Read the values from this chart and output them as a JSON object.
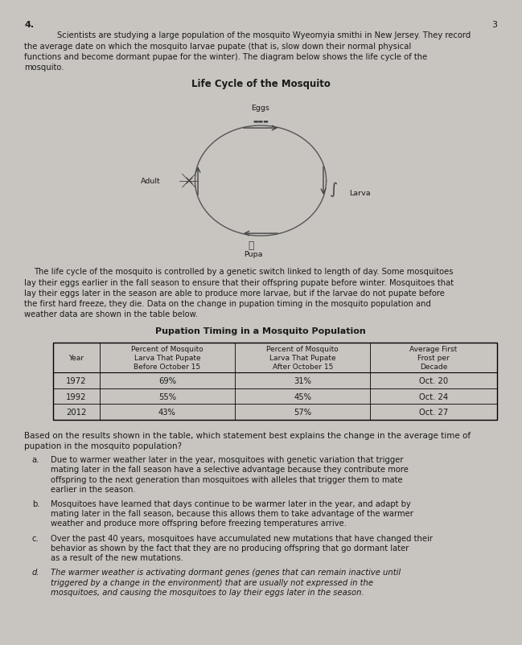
{
  "bg_color": "#c8c4c0",
  "page_bg": "#eceae6",
  "question_number": "4.",
  "page_number": "3",
  "intro_line1": "Scientists are studying a large population of the mosquito Wyeomyia smithi in New Jersey. They record",
  "intro_line2": "the average date on which the mosquito larvae pupate (that is, slow down their normal physical",
  "intro_line3": "functions and become dormant pupae for the winter). The diagram below shows the life cycle of the",
  "intro_line4": "mosquito.",
  "diagram_title": "Life Cycle of the Mosquito",
  "para_lines": [
    "The life cycle of the mosquito is controlled by a genetic switch linked to length of day. Some mosquitoes",
    "lay their eggs earlier in the fall season to ensure that their offspring pupate before winter. Mosquitoes that",
    "lay their eggs later in the season are able to produce more larvae, but if the larvae do not pupate before",
    "the first hard freeze, they die. Data on the change in pupation timing in the mosquito population and",
    "weather data are shown in the table below."
  ],
  "table_title": "Pupation Timing in a Mosquito Population",
  "col_headers": [
    "Year",
    "Percent of Mosquito\nLarva That Pupate\nBefore October 15",
    "Percent of Mosquito\nLarva That Pupate\nAfter October 15",
    "Average First\nFrost per\nDecade"
  ],
  "rows": [
    [
      "1972",
      "69%",
      "31%",
      "Oct. 20"
    ],
    [
      "1992",
      "55%",
      "45%",
      "Oct. 24"
    ],
    [
      "2012",
      "43%",
      "57%",
      "Oct. 27"
    ]
  ],
  "q_line1": "Based on the results shown in the table, which statement best explains the change in the average time of",
  "q_line2": "pupation in the mosquito population?",
  "ans_a_label": "a.",
  "ans_a": "Due to warmer weather later in the year, mosquitoes with genetic variation that trigger mating later in the fall season have a selective advantage because they contribute more offspring to the next generation than mosquitoes with alleles that trigger them to mate earlier in the season.",
  "ans_b_label": "b.",
  "ans_b": "Mosquitoes have learned that days continue to be warmer later in the year, and adapt by mating later in the fall season, because this allows them to take advantage of the warmer weather and produce more offspring before freezing temperatures arrive.",
  "ans_c_label": "c.",
  "ans_c": "Over the past 40 years, mosquitoes have accumulated new mutations that have changed their behavior as shown by the fact that they are no producing offspring that go dormant later as a result of the new mutations.",
  "ans_d_label": "d.",
  "ans_d": "The warmer weather is activating dormant genes (genes that can remain inactive until triggered by a change in the environment) that are usually not expressed in the mosquitoes, and causing the mosquitoes to lay their eggs later in the season.",
  "text_color": "#1a1a1a",
  "fs_body": 7.2,
  "fs_label": 6.8,
  "fs_title": 8.5,
  "fs_table_hdr": 6.5,
  "fs_q": 7.5
}
